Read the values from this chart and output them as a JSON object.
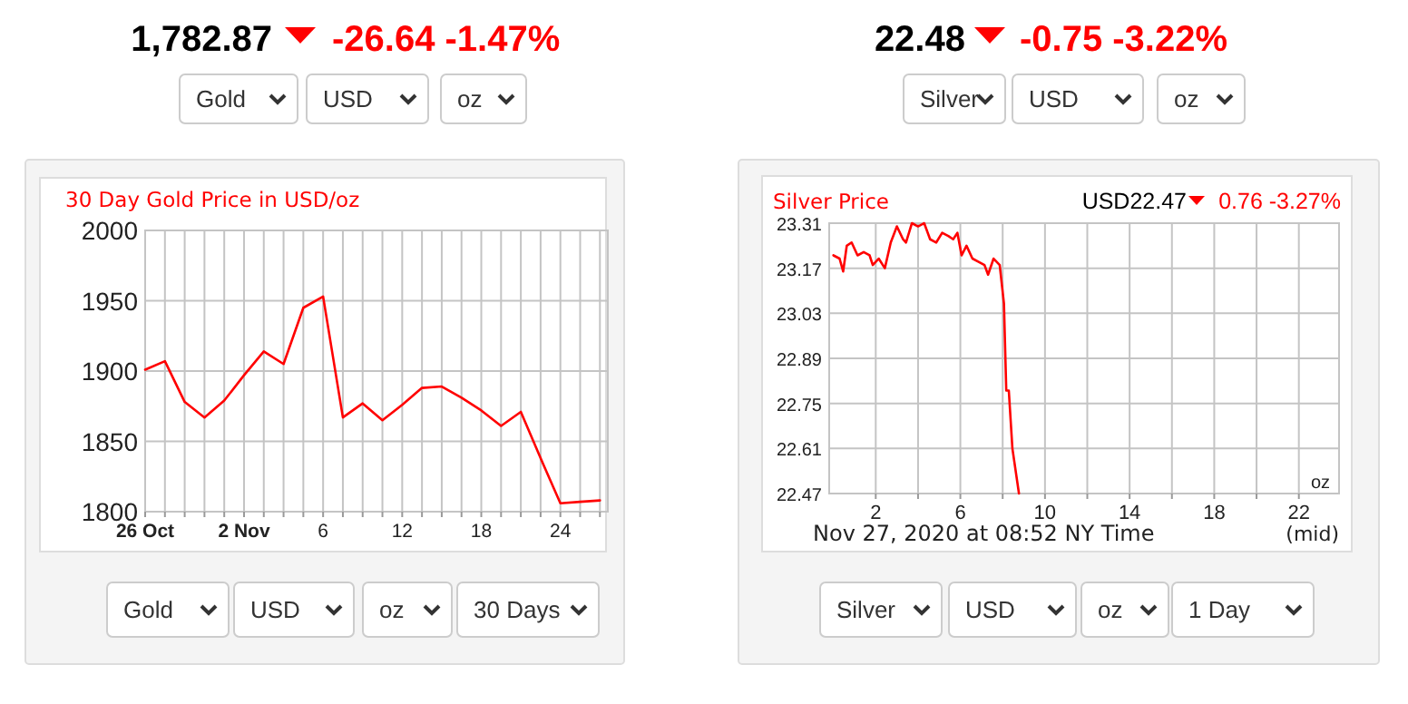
{
  "chart_data": [
    {
      "type": "line",
      "title": "30 Day Gold Price in USD/oz",
      "categories": [
        "26 Oct",
        null,
        null,
        null,
        null,
        "2 Nov",
        null,
        null,
        null,
        "6",
        null,
        null,
        null,
        "12",
        null,
        null,
        null,
        "18",
        null,
        null,
        null,
        "24",
        null,
        null
      ],
      "series": [
        {
          "color": "#ff0000",
          "values": [
            1901,
            1907,
            1878,
            1867,
            1879,
            1897,
            1914,
            1905,
            1945,
            1953,
            1867,
            1877,
            1865,
            1876,
            1888,
            1889,
            1881,
            1872,
            1861,
            1871,
            1838,
            1806,
            1807,
            1808
          ]
        }
      ],
      "ylim": [
        1800,
        2000
      ],
      "yticks": [
        1800,
        1850,
        1900,
        1950,
        2000
      ],
      "grid": true,
      "annotations": [
        "1,782.87",
        "-26.64 -1.47%",
        "Gold",
        "USD",
        "oz",
        "Gold",
        "USD",
        "oz",
        "30 Days"
      ]
    },
    {
      "type": "line",
      "title": "Silver Price",
      "x": [
        0,
        0.29,
        0.46,
        0.63,
        0.86,
        1.14,
        1.43,
        1.71,
        1.86,
        2.14,
        2.43,
        2.71,
        3.0,
        3.29,
        3.43,
        3.71,
        4.0,
        4.29,
        4.57,
        4.86,
        5.14,
        5.43,
        5.66,
        5.86,
        6.06,
        6.29,
        6.57,
        6.86,
        7.14,
        7.31,
        7.57,
        7.86,
        8.06,
        8.17,
        8.29,
        8.46,
        8.77
      ],
      "series": [
        {
          "color": "#ff0000",
          "values": [
            23.21,
            23.2,
            23.16,
            23.24,
            23.25,
            23.21,
            23.22,
            23.21,
            23.18,
            23.2,
            23.17,
            23.25,
            23.3,
            23.26,
            23.25,
            23.31,
            23.3,
            23.31,
            23.26,
            23.25,
            23.28,
            23.27,
            23.26,
            23.28,
            23.21,
            23.24,
            23.2,
            23.19,
            23.18,
            23.15,
            23.2,
            23.18,
            23.06,
            22.79,
            22.79,
            22.61,
            22.47
          ]
        }
      ],
      "xlim": [
        -0.2,
        23.9
      ],
      "xticks": [
        2,
        {
          "value": 4,
          "label": null
        },
        6,
        {
          "value": 8,
          "label": null
        },
        10,
        {
          "value": 12,
          "label": null
        },
        14,
        {
          "value": 16,
          "label": null
        },
        18,
        {
          "value": 20,
          "label": null
        },
        22
      ],
      "ylim": [
        22.47,
        23.31
      ],
      "yticks": [
        22.47,
        22.61,
        22.75,
        22.89,
        23.03,
        23.17,
        23.31
      ],
      "grid": true,
      "annotations": [
        "22.48",
        "-0.75 -3.22%",
        "Silver",
        "USD",
        "oz",
        "Silver",
        "USD",
        "oz",
        "1 Day",
        "USD22.47",
        "0.76 -3.27%",
        "oz",
        "Nov 27, 2020 at 08:52 NY Time",
        "(mid)"
      ]
    }
  ]
}
